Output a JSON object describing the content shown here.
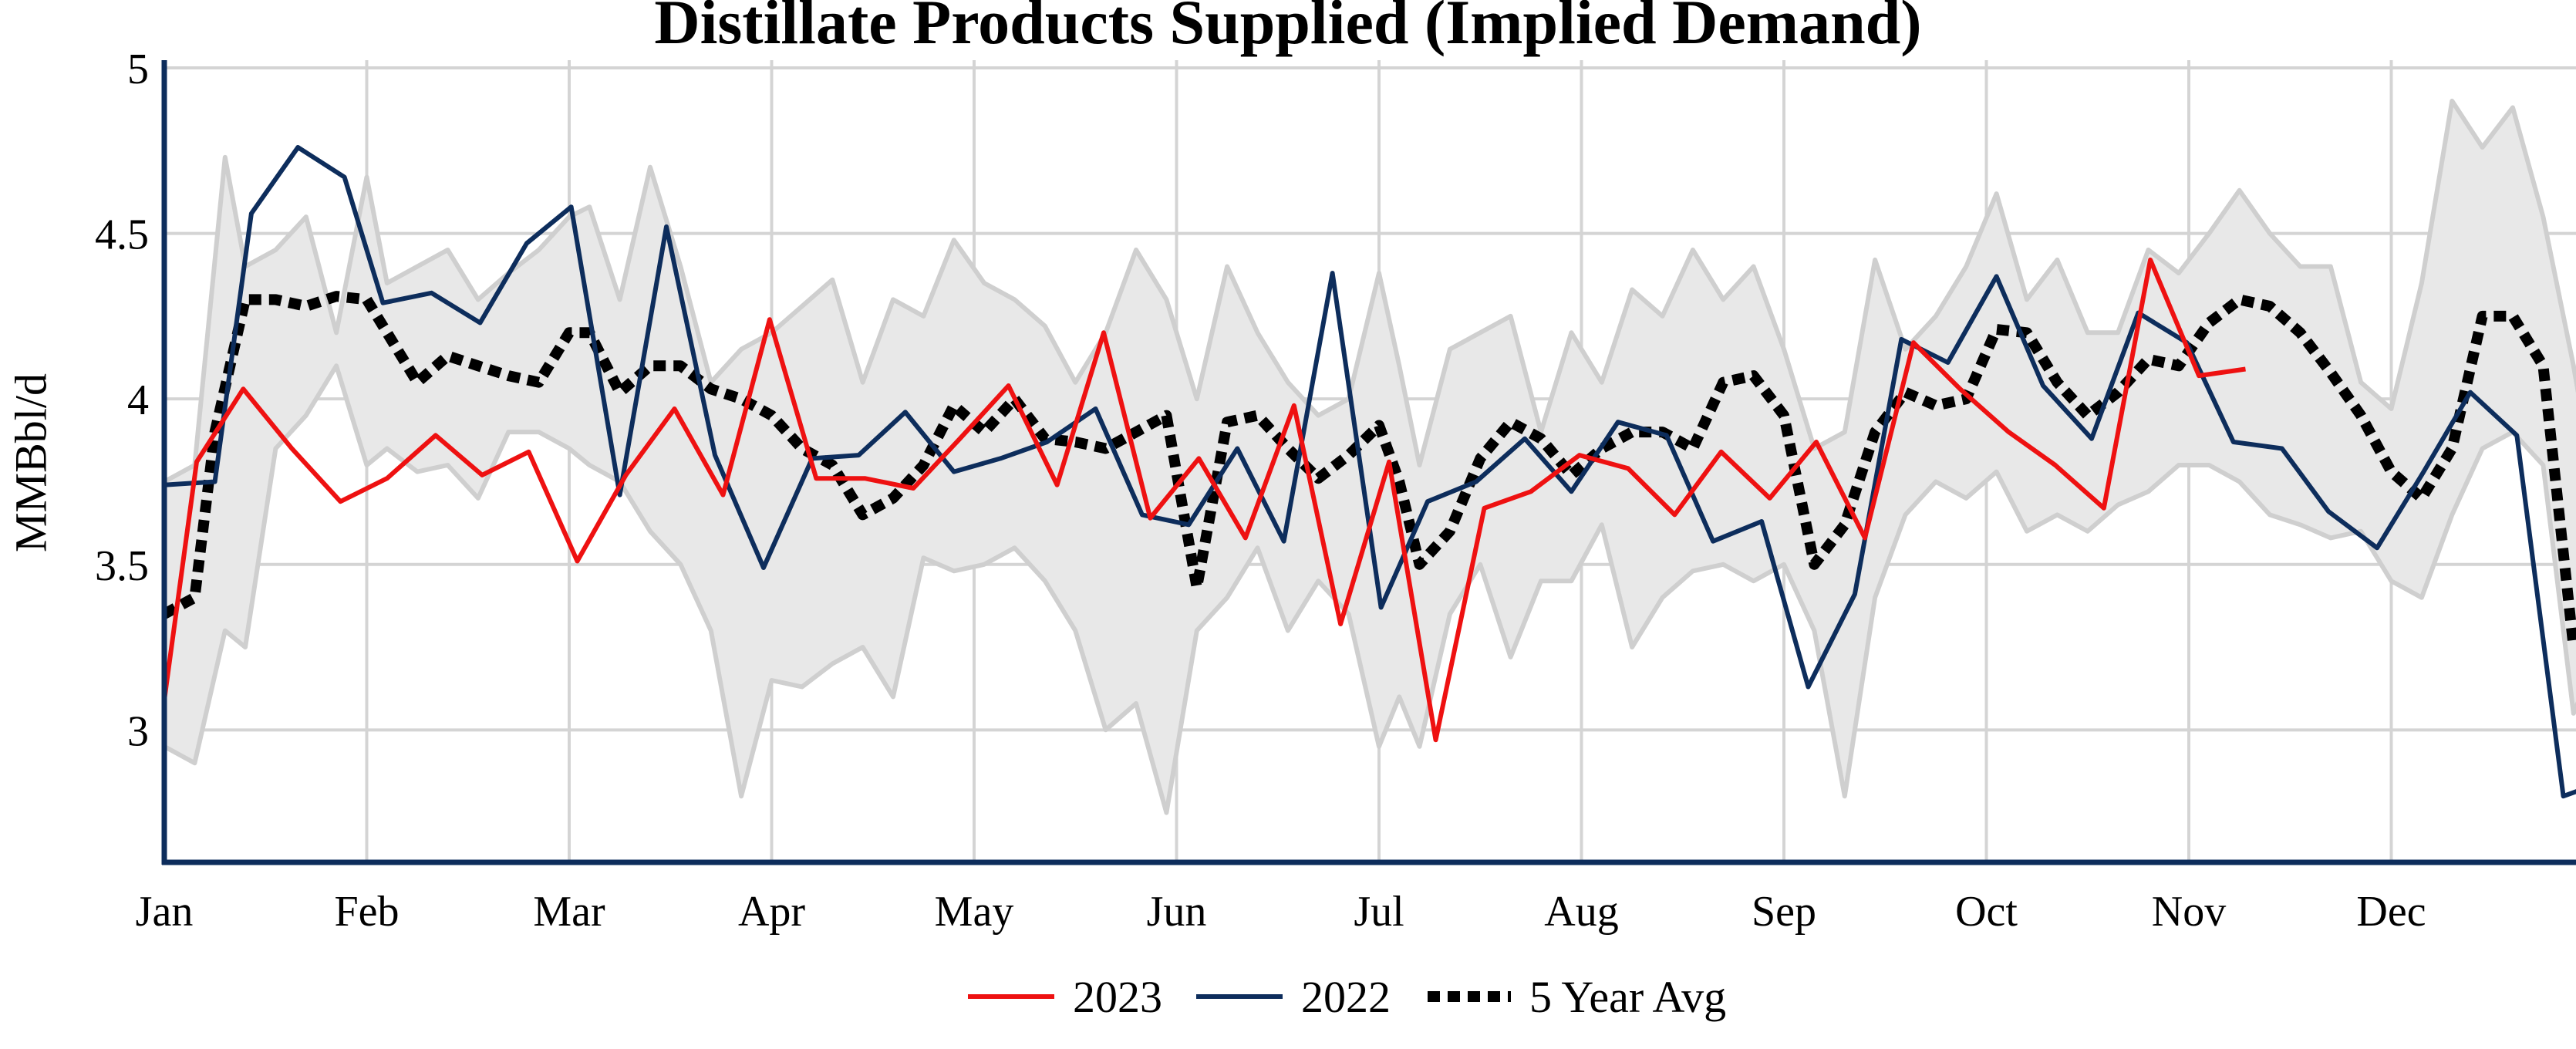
{
  "chart_data": {
    "type": "line",
    "title": "Distillate Products Supplied (Implied Demand)",
    "ylabel": "MMBbl/d",
    "xlabel": "",
    "ylim": [
      2.6,
      5.0
    ],
    "xlim": [
      0,
      12
    ],
    "y_ticks": [
      3,
      3.5,
      4,
      4.5,
      5
    ],
    "y_tick_labels": [
      "3",
      "3.5",
      "4",
      "4.5",
      "5"
    ],
    "x_ticks": [
      0,
      1,
      2,
      3,
      4,
      5,
      6,
      7,
      8,
      9,
      10,
      11
    ],
    "x_tick_labels": [
      "Jan",
      "Feb",
      "Mar",
      "Apr",
      "May",
      "Jun",
      "Jul",
      "Aug",
      "Sep",
      "Oct",
      "Nov",
      "Dec"
    ],
    "x_unit": "months from Jan 1 (weekly observations)",
    "grid": true,
    "legend_position": "bottom-center",
    "legend": [
      "2023",
      "2022",
      "5 Year Avg"
    ],
    "colors": {
      "y2023": "#ee1111",
      "y2022": "#0d2d5c",
      "avg": "#000000",
      "band_fill": "#e8e8e8",
      "band_edge": "#cfcfcf",
      "grid": "#d4d4d4",
      "axis": "#0d2d5c"
    },
    "series": [
      {
        "name": "2023",
        "x": [
          0.0,
          0.16,
          0.39,
          0.63,
          0.87,
          1.1,
          1.34,
          1.57,
          1.8,
          2.04,
          2.28,
          2.52,
          2.76,
          2.99,
          3.22,
          3.46,
          3.7,
          3.93,
          4.17,
          4.41,
          4.64,
          4.87,
          5.11,
          5.34,
          5.58,
          5.81,
          6.05,
          6.28,
          6.52,
          6.75,
          6.99,
          7.23,
          7.46,
          7.69,
          7.93,
          8.16,
          8.4,
          8.64,
          8.87,
          9.11,
          9.34,
          9.58,
          9.81,
          10.05,
          10.28
        ],
        "y": [
          3.09,
          3.81,
          4.03,
          3.85,
          3.69,
          3.76,
          3.89,
          3.77,
          3.84,
          3.51,
          3.77,
          3.97,
          3.71,
          4.24,
          3.76,
          3.76,
          3.73,
          3.88,
          4.04,
          3.74,
          4.2,
          3.64,
          3.82,
          3.58,
          3.98,
          3.32,
          3.81,
          2.97,
          3.67,
          3.72,
          3.83,
          3.79,
          3.65,
          3.84,
          3.7,
          3.87,
          3.58,
          4.17,
          4.03,
          3.9,
          3.8,
          3.67,
          4.42,
          4.07,
          4.09
        ]
      },
      {
        "name": "2022",
        "x": [
          0.0,
          0.25,
          0.43,
          0.66,
          0.89,
          1.08,
          1.32,
          1.56,
          1.79,
          2.01,
          2.25,
          2.48,
          2.72,
          2.96,
          3.2,
          3.43,
          3.66,
          3.9,
          4.13,
          4.36,
          4.6,
          4.83,
          5.06,
          5.3,
          5.53,
          5.77,
          6.01,
          6.24,
          6.48,
          6.72,
          6.95,
          7.18,
          7.42,
          7.65,
          7.89,
          8.12,
          8.35,
          8.58,
          8.81,
          9.05,
          9.28,
          9.52,
          9.75,
          9.99,
          10.22,
          10.46,
          10.69,
          10.93,
          11.16,
          11.39,
          11.62,
          11.85,
          12.08,
          12.3
        ],
        "y": [
          3.74,
          3.75,
          4.56,
          4.76,
          4.67,
          4.29,
          4.32,
          4.23,
          4.47,
          4.58,
          3.71,
          4.52,
          3.83,
          3.49,
          3.82,
          3.83,
          3.96,
          3.78,
          3.82,
          3.87,
          3.97,
          3.65,
          3.62,
          3.85,
          3.57,
          4.38,
          3.37,
          3.69,
          3.75,
          3.88,
          3.72,
          3.93,
          3.89,
          3.57,
          3.63,
          3.13,
          3.41,
          4.18,
          4.11,
          4.37,
          4.04,
          3.88,
          4.26,
          4.17,
          3.87,
          3.85,
          3.66,
          3.55,
          3.78,
          4.02,
          3.89,
          2.8,
          2.85,
          2.9
        ]
      },
      {
        "name": "5 Year Avg",
        "x": [
          0.0,
          0.15,
          0.25,
          0.4,
          0.55,
          0.7,
          0.85,
          1.0,
          1.1,
          1.25,
          1.4,
          1.55,
          1.7,
          1.85,
          2.0,
          2.1,
          2.25,
          2.4,
          2.55,
          2.7,
          2.85,
          3.0,
          3.15,
          3.3,
          3.45,
          3.6,
          3.75,
          3.9,
          4.05,
          4.2,
          4.35,
          4.5,
          4.65,
          4.8,
          4.95,
          5.1,
          5.25,
          5.4,
          5.55,
          5.7,
          5.85,
          6.0,
          6.1,
          6.2,
          6.35,
          6.5,
          6.65,
          6.8,
          6.95,
          7.1,
          7.25,
          7.4,
          7.55,
          7.7,
          7.85,
          8.0,
          8.15,
          8.3,
          8.45,
          8.6,
          8.75,
          8.9,
          9.05,
          9.2,
          9.35,
          9.5,
          9.65,
          9.8,
          9.95,
          10.1,
          10.25,
          10.4,
          10.55,
          10.7,
          10.85,
          11.0,
          11.15,
          11.3,
          11.45,
          11.6,
          11.75,
          11.9
        ],
        "y": [
          3.35,
          3.4,
          3.9,
          4.3,
          4.3,
          4.28,
          4.31,
          4.3,
          4.2,
          4.05,
          4.13,
          4.1,
          4.07,
          4.05,
          4.2,
          4.2,
          4.02,
          4.1,
          4.1,
          4.03,
          4.0,
          3.95,
          3.85,
          3.8,
          3.65,
          3.7,
          3.8,
          3.98,
          3.9,
          4.0,
          3.88,
          3.87,
          3.85,
          3.9,
          3.95,
          3.43,
          3.93,
          3.95,
          3.85,
          3.76,
          3.83,
          3.92,
          3.75,
          3.5,
          3.6,
          3.82,
          3.93,
          3.88,
          3.77,
          3.85,
          3.9,
          3.9,
          3.85,
          4.05,
          4.07,
          3.95,
          3.5,
          3.62,
          3.9,
          4.02,
          3.98,
          4.0,
          4.21,
          4.2,
          4.05,
          3.95,
          4.02,
          4.12,
          4.1,
          4.23,
          4.3,
          4.28,
          4.2,
          4.08,
          3.95,
          3.78,
          3.7,
          3.85,
          4.25,
          4.25,
          4.1,
          3.25
        ]
      }
    ],
    "range_band": {
      "name": "5 Year Range",
      "x": [
        0.0,
        0.15,
        0.3,
        0.4,
        0.55,
        0.7,
        0.85,
        1.0,
        1.1,
        1.25,
        1.4,
        1.55,
        1.7,
        1.85,
        2.0,
        2.1,
        2.25,
        2.4,
        2.55,
        2.7,
        2.85,
        3.0,
        3.15,
        3.3,
        3.45,
        3.6,
        3.75,
        3.9,
        4.05,
        4.2,
        4.35,
        4.5,
        4.65,
        4.8,
        4.95,
        5.1,
        5.25,
        5.4,
        5.55,
        5.7,
        5.85,
        6.0,
        6.1,
        6.2,
        6.35,
        6.5,
        6.65,
        6.8,
        6.95,
        7.1,
        7.25,
        7.4,
        7.55,
        7.7,
        7.85,
        8.0,
        8.15,
        8.3,
        8.45,
        8.6,
        8.75,
        8.9,
        9.05,
        9.2,
        9.35,
        9.5,
        9.65,
        9.8,
        9.95,
        10.1,
        10.25,
        10.4,
        10.55,
        10.7,
        10.85,
        11.0,
        11.15,
        11.3,
        11.45,
        11.6,
        11.75,
        11.9,
        12.0
      ],
      "high": [
        3.75,
        3.8,
        4.73,
        4.4,
        4.45,
        4.55,
        4.2,
        4.67,
        4.35,
        4.4,
        4.45,
        4.3,
        4.38,
        4.45,
        4.55,
        4.58,
        4.3,
        4.7,
        4.4,
        4.05,
        4.15,
        4.2,
        4.28,
        4.36,
        4.05,
        4.3,
        4.25,
        4.48,
        4.35,
        4.3,
        4.22,
        4.05,
        4.2,
        4.45,
        4.3,
        4.0,
        4.4,
        4.2,
        4.05,
        3.95,
        4.0,
        4.38,
        4.1,
        3.8,
        4.15,
        4.2,
        4.25,
        3.9,
        4.2,
        4.05,
        4.33,
        4.25,
        4.45,
        4.3,
        4.4,
        4.15,
        3.85,
        3.9,
        4.42,
        4.15,
        4.25,
        4.4,
        4.62,
        4.3,
        4.42,
        4.2,
        4.2,
        4.45,
        4.38,
        4.5,
        4.63,
        4.5,
        4.4,
        4.4,
        4.05,
        3.97,
        4.35,
        4.9,
        4.76,
        4.88,
        4.55,
        4.1,
        3.75
      ],
      "low": [
        2.95,
        2.9,
        3.3,
        3.25,
        3.85,
        3.95,
        4.1,
        3.8,
        3.85,
        3.78,
        3.8,
        3.7,
        3.9,
        3.9,
        3.85,
        3.8,
        3.75,
        3.6,
        3.5,
        3.3,
        2.8,
        3.15,
        3.13,
        3.2,
        3.25,
        3.1,
        3.52,
        3.48,
        3.5,
        3.55,
        3.45,
        3.3,
        3.0,
        3.08,
        2.75,
        3.3,
        3.4,
        3.55,
        3.3,
        3.45,
        3.35,
        2.95,
        3.1,
        2.95,
        3.35,
        3.5,
        3.22,
        3.45,
        3.45,
        3.62,
        3.25,
        3.4,
        3.48,
        3.5,
        3.45,
        3.5,
        3.3,
        2.8,
        3.4,
        3.65,
        3.75,
        3.7,
        3.78,
        3.6,
        3.65,
        3.6,
        3.68,
        3.72,
        3.8,
        3.8,
        3.75,
        3.65,
        3.62,
        3.58,
        3.6,
        3.45,
        3.4,
        3.65,
        3.85,
        3.9,
        3.8,
        3.05,
        3.2
      ]
    }
  }
}
